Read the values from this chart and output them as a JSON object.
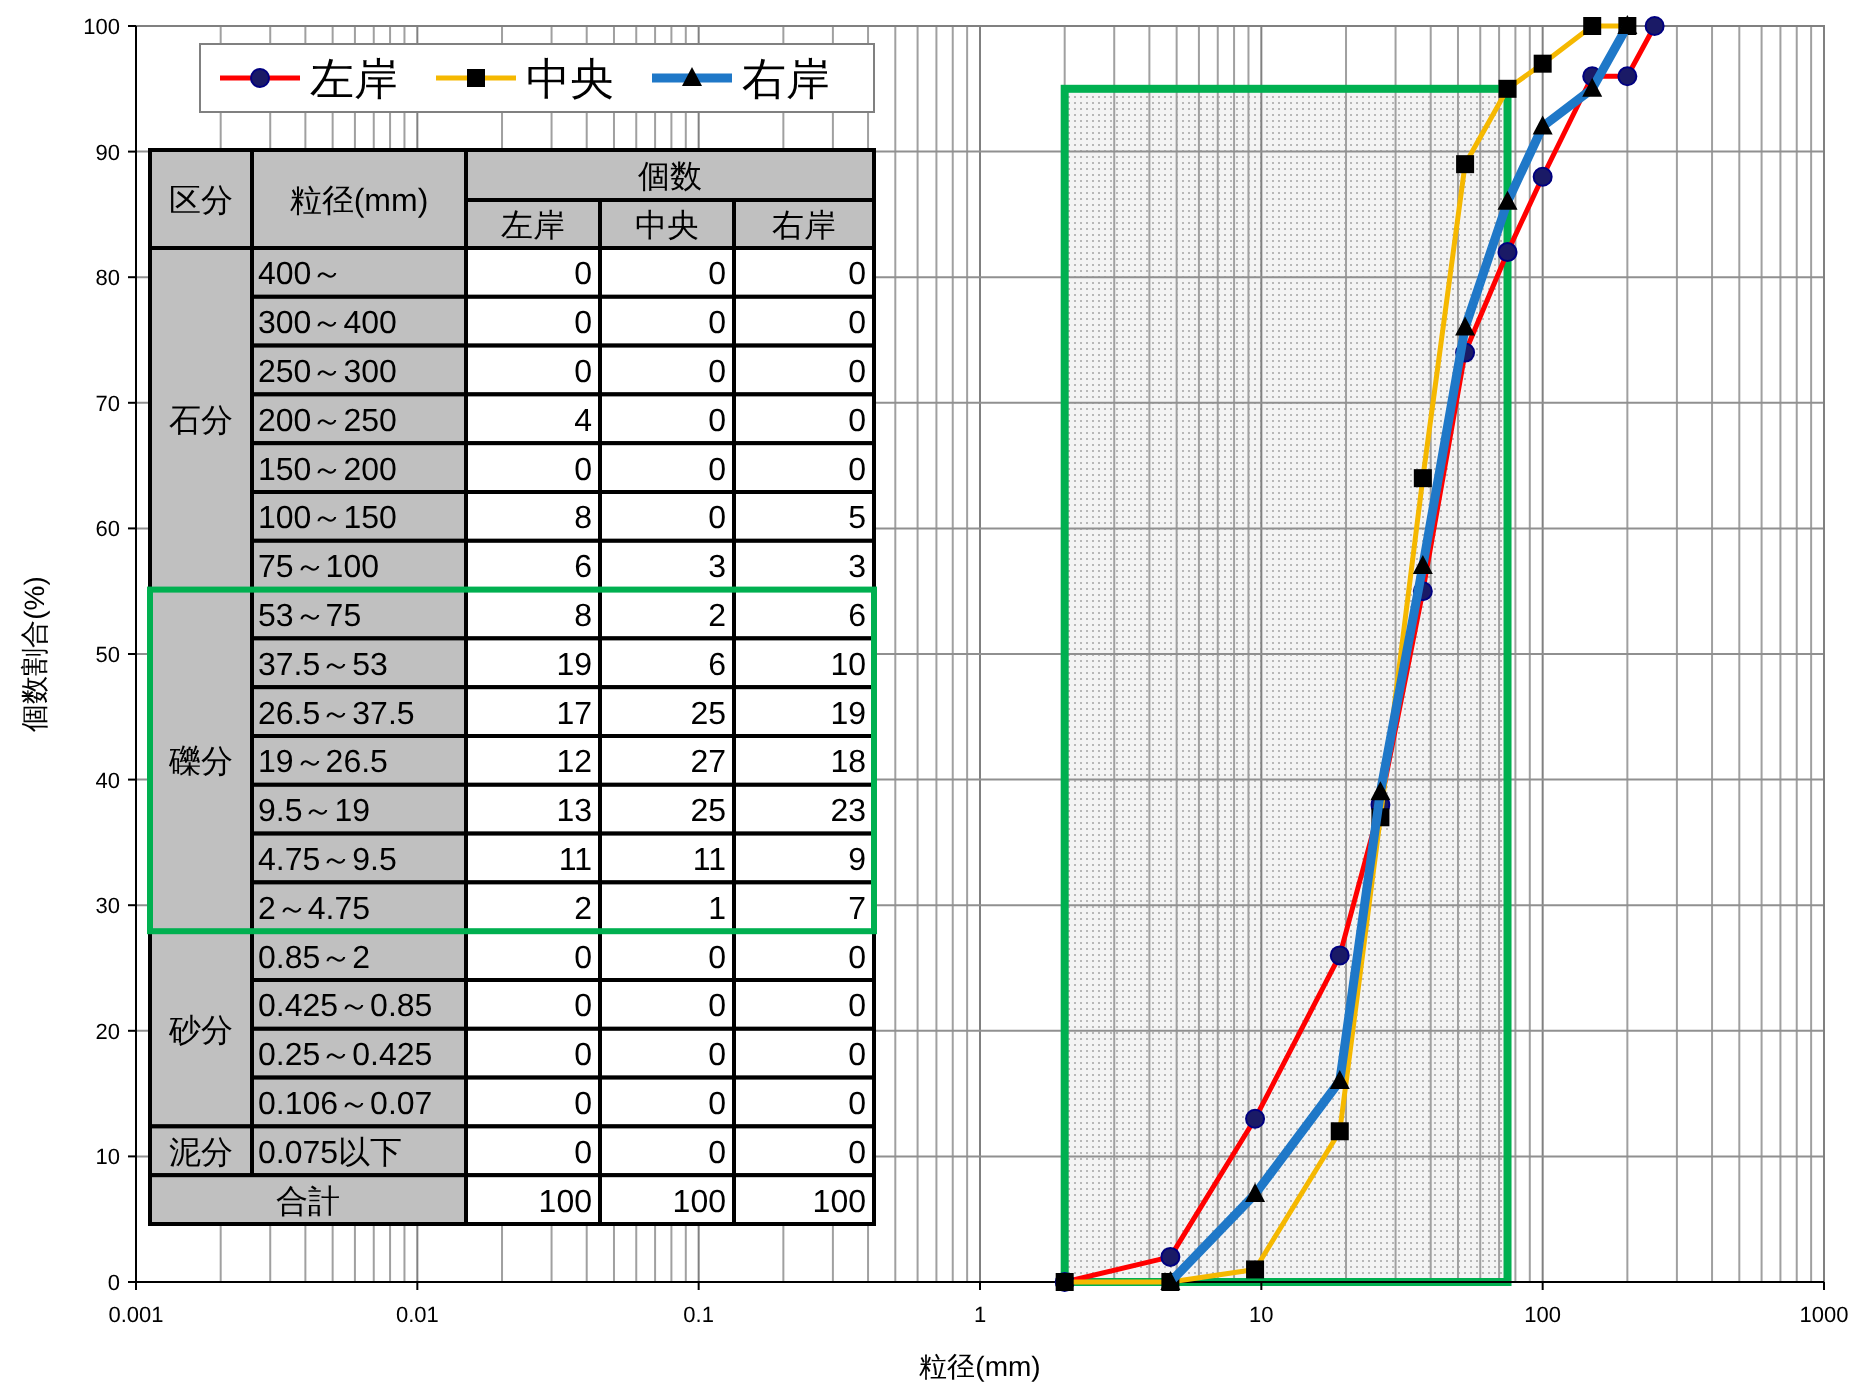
{
  "chart_data": [
    {
      "type": "line",
      "xlabel": "粒径(mm)",
      "ylabel": "個数割合(%)",
      "log": "x",
      "xlim": [
        0.001,
        1000
      ],
      "xticks": [
        0.001,
        0.01,
        0.1,
        1,
        10,
        100,
        1000
      ],
      "ylim": [
        0,
        100
      ],
      "yticks": [
        0,
        10,
        20,
        30,
        40,
        50,
        60,
        70,
        80,
        90,
        100
      ],
      "grid": true,
      "legend": "top left",
      "bands": [
        {
          "axis": "x",
          "from": 2,
          "to": 75,
          "color": "#00b050"
        }
      ],
      "series": [
        {
          "name": "左岸",
          "color": "#ff0000",
          "marker": "circle",
          "x": [
            2,
            4.75,
            9.5,
            19,
            26.5,
            37.5,
            53,
            75,
            100,
            150,
            200,
            250
          ],
          "values": [
            0,
            2,
            13,
            26,
            38,
            55,
            74,
            82,
            88,
            96,
            96,
            100
          ]
        },
        {
          "name": "中央",
          "color": "#f5b800",
          "marker": "square",
          "x": [
            2,
            4.75,
            9.5,
            19,
            26.5,
            37.5,
            53,
            75,
            100,
            150,
            200
          ],
          "values": [
            0,
            0,
            1,
            12,
            37,
            64,
            89,
            95,
            97,
            100,
            100
          ]
        },
        {
          "name": "右岸",
          "color": "#1f78c8",
          "marker": "triangle",
          "x": [
            4.75,
            9.5,
            19,
            26.5,
            37.5,
            53,
            75,
            100,
            150,
            200
          ],
          "values": [
            0,
            7,
            16,
            39,
            57,
            76,
            86,
            92,
            95,
            100
          ]
        }
      ]
    },
    {
      "type": "other",
      "title": "個数",
      "annotations": [
        "区分",
        "粒径(mm)",
        "石分",
        "礫分",
        "砂分",
        "泥分",
        "合計"
      ],
      "categories": [
        "400～",
        "300～400",
        "250～300",
        "200～250",
        "150～200",
        "100～150",
        "75～100",
        "53～75",
        "37.5～53",
        "26.5～37.5",
        "19～26.5",
        "9.5～19",
        "4.75～9.5",
        "2～4.75",
        "0.85～2",
        "0.425～0.85",
        "0.25～0.425",
        "0.106～0.07",
        "0.075以下"
      ],
      "series": [
        {
          "name": "左岸",
          "values": [
            0,
            0,
            0,
            4,
            0,
            8,
            6,
            8,
            19,
            17,
            12,
            13,
            11,
            2,
            0,
            0,
            0,
            0,
            0
          ]
        },
        {
          "name": "中央",
          "values": [
            0,
            0,
            0,
            0,
            0,
            0,
            3,
            2,
            6,
            25,
            27,
            25,
            11,
            1,
            0,
            0,
            0,
            0,
            0
          ]
        },
        {
          "name": "右岸",
          "values": [
            0,
            0,
            0,
            0,
            0,
            5,
            3,
            6,
            10,
            19,
            18,
            23,
            9,
            7,
            0,
            0,
            0,
            0,
            0
          ]
        }
      ],
      "data_labels": true,
      "totals": [
        "100",
        "100",
        "100"
      ]
    }
  ]
}
